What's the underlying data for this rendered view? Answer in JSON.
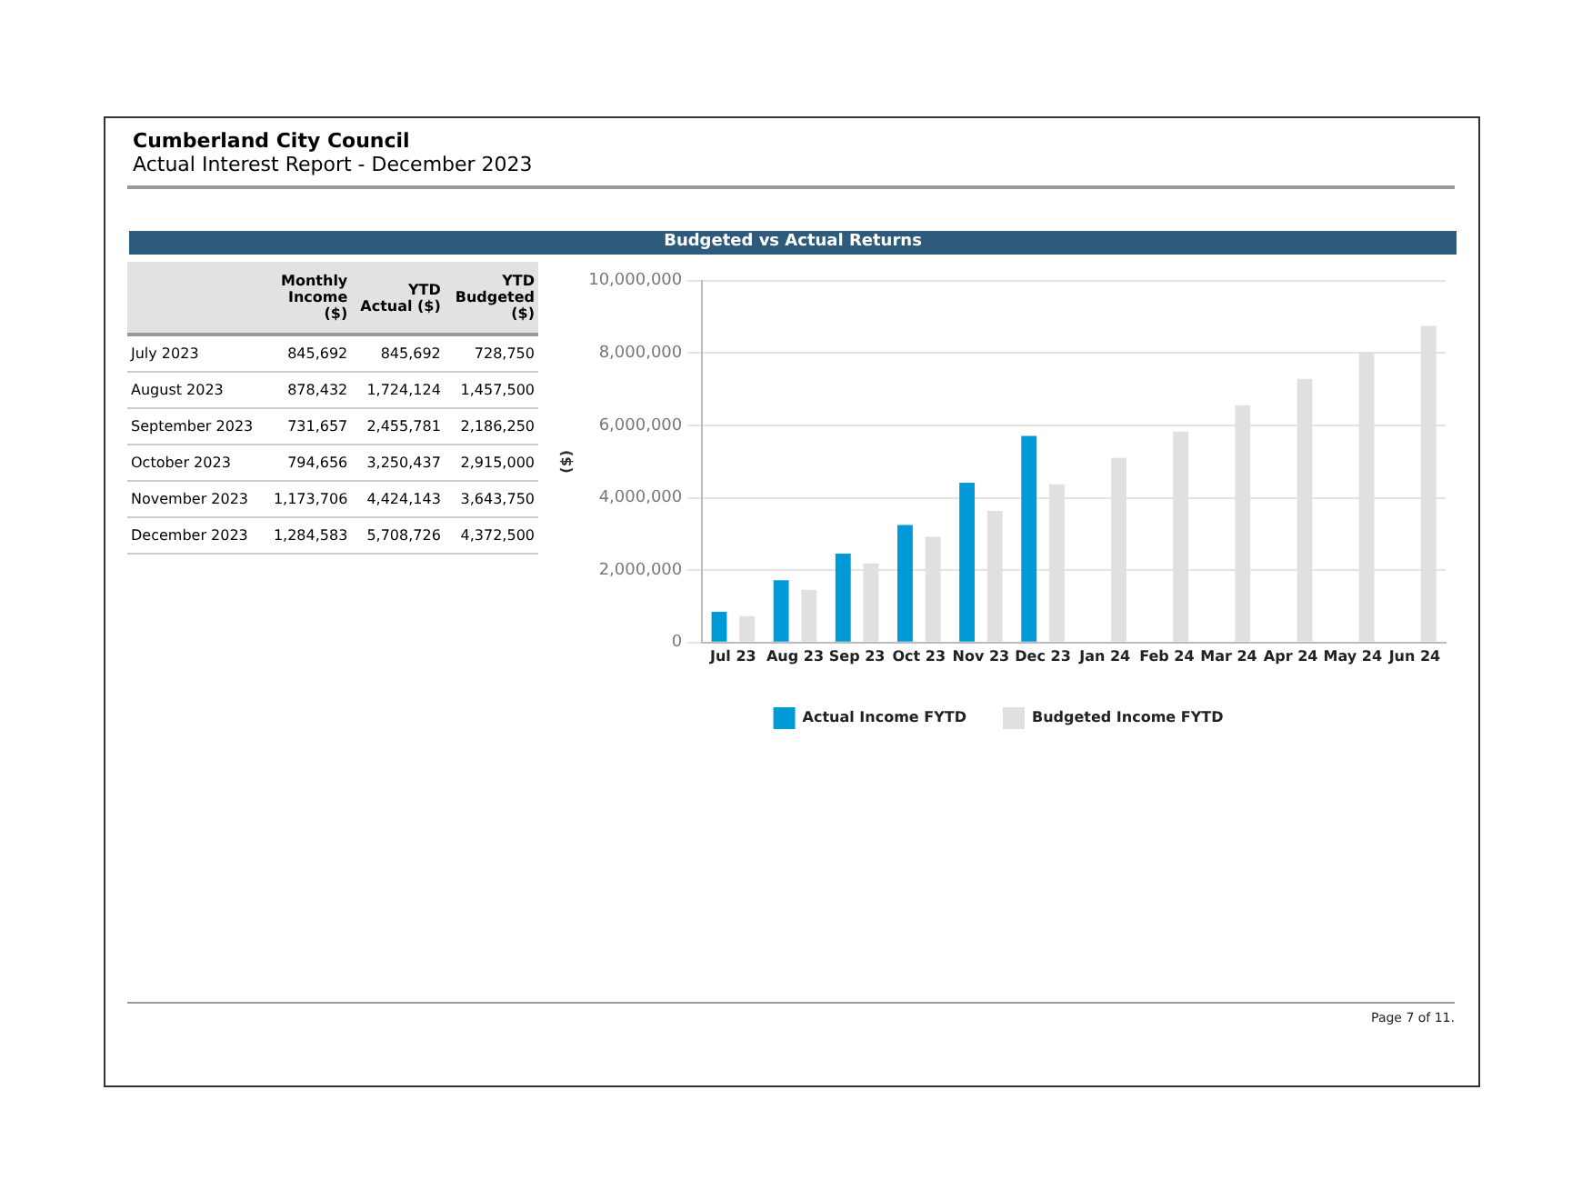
{
  "chart_data": [
    {
      "type": "other",
      "title": "Cumberland City Council",
      "subtitle": "Actual Interest Report - December 2023",
      "categories": [
        "July 2023",
        "August 2023",
        "September 2023",
        "October 2023",
        "November 2023",
        "December 2023"
      ],
      "series": [
        {
          "name": "Monthly Income ($)",
          "values": [
            845692,
            878432,
            731657,
            794656,
            1173706,
            1284583
          ],
          "value_labels": [
            "845,692",
            "878,432",
            "731,657",
            "794,656",
            "1,173,706",
            "1,284,583"
          ]
        },
        {
          "name": "YTD Actual ($)",
          "values": [
            845692,
            1724124,
            2455781,
            3250437,
            4424143,
            5708726
          ],
          "value_labels": [
            "845,692",
            "1,724,124",
            "2,455,781",
            "3,250,437",
            "4,424,143",
            "5,708,726"
          ]
        },
        {
          "name": "YTD Budgeted ($)",
          "values": [
            728750,
            1457500,
            2186250,
            2915000,
            3643750,
            4372500
          ],
          "value_labels": [
            "728,750",
            "1,457,500",
            "2,186,250",
            "2,915,000",
            "3,643,750",
            "4,372,500"
          ]
        }
      ]
    },
    {
      "type": "bar",
      "title": "Budgeted vs Actual Returns",
      "ylabel": "($)",
      "categories": [
        "Jul 23",
        "Aug 23",
        "Sep 23",
        "Oct 23",
        "Nov 23",
        "Dec 23",
        "Jan 24",
        "Feb 24",
        "Mar 24",
        "Apr 24",
        "May 24",
        "Jun 24"
      ],
      "series": [
        {
          "name": "Actual Income FYTD",
          "color": "#009ad6",
          "values": [
            850000,
            1720000,
            2460000,
            3250000,
            4420000,
            5710000,
            null,
            null,
            null,
            null,
            null,
            null
          ]
        },
        {
          "name": "Budgeted Income FYTD",
          "color": "#e0e0e0",
          "values": [
            730000,
            1460000,
            2190000,
            2920000,
            3640000,
            4370000,
            5100000,
            5830000,
            6560000,
            7290000,
            8020000,
            8750000
          ]
        }
      ],
      "ylim": [
        0,
        10000000
      ],
      "yticks": [
        0,
        {
          "value": 2000000,
          "label": "2,000,000"
        },
        {
          "value": 4000000,
          "label": "4,000,000"
        },
        {
          "value": 6000000,
          "label": "6,000,000"
        },
        {
          "value": 8000000,
          "label": "8,000,000"
        },
        {
          "value": 10000000,
          "label": "10,000,000"
        }
      ],
      "grid": "y",
      "legend": "bottom",
      "annotations": [
        "Page 7 of 11."
      ]
    }
  ]
}
